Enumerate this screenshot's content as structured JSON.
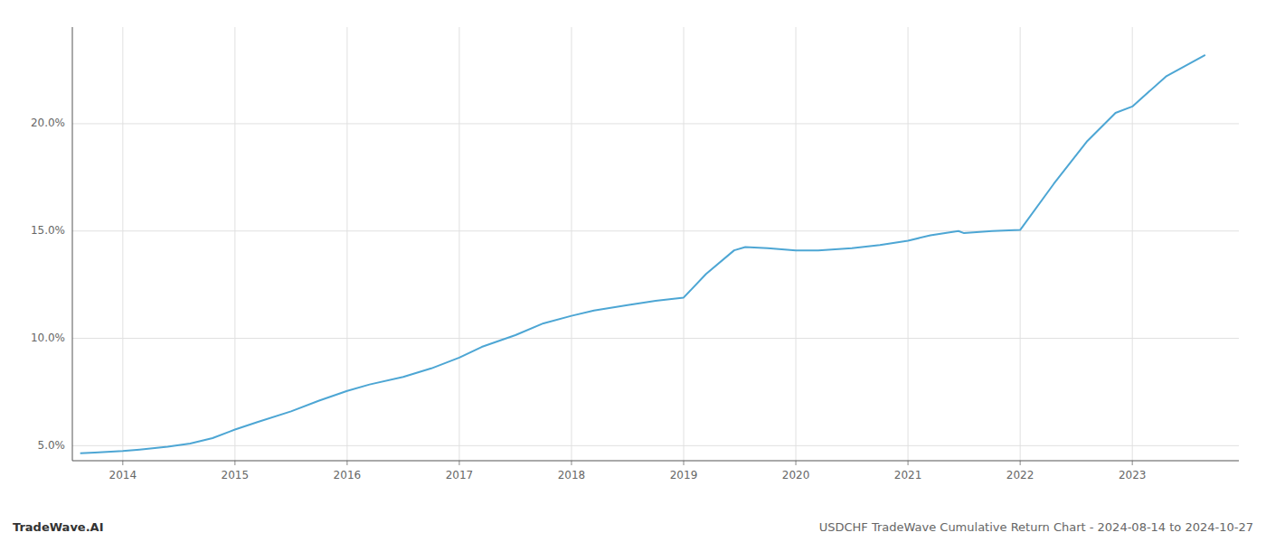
{
  "chart_data": {
    "type": "line",
    "title": "USDCHF TradeWave Cumulative Return Chart - 2024-08-14 to 2024-10-27",
    "annotations": [
      "TradeWave.AI"
    ],
    "x": [
      2013.62,
      2013.75,
      2014.0,
      2014.15,
      2014.4,
      2014.6,
      2014.8,
      2015.0,
      2015.2,
      2015.5,
      2015.75,
      2016.0,
      2016.2,
      2016.5,
      2016.75,
      2017.0,
      2017.2,
      2017.5,
      2017.75,
      2018.0,
      2018.2,
      2018.5,
      2018.75,
      2019.0,
      2019.2,
      2019.45,
      2019.55,
      2019.75,
      2020.0,
      2020.2,
      2020.5,
      2020.75,
      2021.0,
      2021.2,
      2021.45,
      2021.5,
      2021.75,
      2022.0,
      2022.3,
      2022.6,
      2022.85,
      2023.0,
      2023.3,
      2023.65
    ],
    "values": [
      4.65,
      4.68,
      4.75,
      4.82,
      4.95,
      5.1,
      5.35,
      5.75,
      6.1,
      6.6,
      7.1,
      7.55,
      7.85,
      8.2,
      8.6,
      9.1,
      9.6,
      10.15,
      10.7,
      11.05,
      11.3,
      11.55,
      11.75,
      11.9,
      13.0,
      14.1,
      14.25,
      14.2,
      14.1,
      14.1,
      14.2,
      14.35,
      14.55,
      14.8,
      15.0,
      14.9,
      15.0,
      15.05,
      17.2,
      19.2,
      20.5,
      20.8,
      22.2,
      23.2
    ],
    "color": "#4da6d4",
    "xlim": [
      2013.55,
      2023.95
    ],
    "ylim": [
      4.3,
      24.5
    ],
    "xticks": [
      2014,
      2015,
      2016,
      2017,
      2018,
      2019,
      2020,
      2021,
      2022,
      2023
    ],
    "yticks": [
      {
        "value": 5.0,
        "label": "5.0%"
      },
      {
        "value": 10.0,
        "label": "10.0%"
      },
      {
        "value": 15.0,
        "label": "15.0%"
      },
      {
        "value": 20.0,
        "label": "20.0%"
      }
    ],
    "grid": true
  }
}
